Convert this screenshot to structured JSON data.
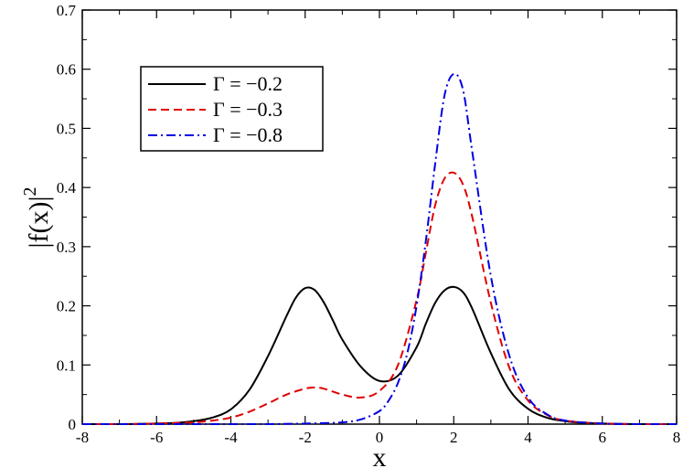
{
  "chart_data": {
    "type": "line",
    "xlabel": "x",
    "ylabel": "|f(x)|",
    "ylabel_superscript": "2",
    "xlim": [
      -8,
      8
    ],
    "ylim": [
      0,
      0.7
    ],
    "x_ticks": [
      "-8",
      "-6",
      "-4",
      "-2",
      "0",
      "2",
      "4",
      "6",
      "8"
    ],
    "y_ticks": [
      "0",
      "0.1",
      "0.2",
      "0.3",
      "0.4",
      "0.5",
      "0.6",
      "0.7"
    ],
    "grid": false,
    "legend_position": "top-left",
    "series": [
      {
        "name": "Γ = −0.2",
        "color": "#000000",
        "dash": "solid",
        "x": [
          -8,
          -7,
          -6,
          -5.5,
          -5,
          -4.5,
          -4,
          -3.5,
          -3,
          -2.5,
          -2.25,
          -2,
          -1.75,
          -1.5,
          -1.25,
          -1,
          -0.5,
          0,
          0.5,
          1,
          1.25,
          1.5,
          1.75,
          2,
          2.25,
          2.5,
          3,
          3.5,
          4,
          4.5,
          5,
          5.5,
          6,
          7,
          8
        ],
        "y": [
          0.0,
          0.0,
          0.001,
          0.002,
          0.005,
          0.011,
          0.025,
          0.058,
          0.115,
          0.183,
          0.214,
          0.23,
          0.227,
          0.206,
          0.175,
          0.143,
          0.097,
          0.073,
          0.082,
          0.13,
          0.17,
          0.205,
          0.226,
          0.232,
          0.223,
          0.195,
          0.12,
          0.058,
          0.026,
          0.011,
          0.005,
          0.002,
          0.001,
          0.0,
          0.0
        ]
      },
      {
        "name": "Γ = −0.3",
        "color": "#e00000",
        "dash": "dashed",
        "x": [
          -8,
          -7,
          -6,
          -5,
          -4.5,
          -4,
          -3.5,
          -3,
          -2.5,
          -2,
          -1.75,
          -1.5,
          -1,
          -0.5,
          0,
          0.5,
          1,
          1.25,
          1.5,
          1.75,
          2,
          2.25,
          2.5,
          3,
          3.5,
          4,
          4.5,
          5,
          6,
          7,
          8
        ],
        "y": [
          0.0,
          0.0,
          0.001,
          0.003,
          0.006,
          0.011,
          0.021,
          0.035,
          0.05,
          0.06,
          0.062,
          0.06,
          0.05,
          0.045,
          0.056,
          0.1,
          0.21,
          0.29,
          0.37,
          0.415,
          0.425,
          0.405,
          0.35,
          0.205,
          0.095,
          0.04,
          0.016,
          0.006,
          0.001,
          0.0,
          0.0
        ]
      },
      {
        "name": "Γ = −0.8",
        "color": "#0000e0",
        "dash": "dashdot",
        "x": [
          -8,
          -6,
          -4,
          -3,
          -2,
          -1,
          -0.5,
          0,
          0.25,
          0.5,
          0.75,
          1,
          1.25,
          1.5,
          1.75,
          2,
          2.25,
          2.5,
          3,
          3.5,
          4,
          4.5,
          5,
          6,
          7,
          8
        ],
        "y": [
          0.0,
          0.0,
          0.0,
          0.0,
          0.001,
          0.003,
          0.008,
          0.022,
          0.04,
          0.07,
          0.12,
          0.2,
          0.31,
          0.44,
          0.555,
          0.592,
          0.565,
          0.46,
          0.25,
          0.115,
          0.045,
          0.017,
          0.006,
          0.001,
          0.0,
          0.0
        ]
      }
    ]
  }
}
